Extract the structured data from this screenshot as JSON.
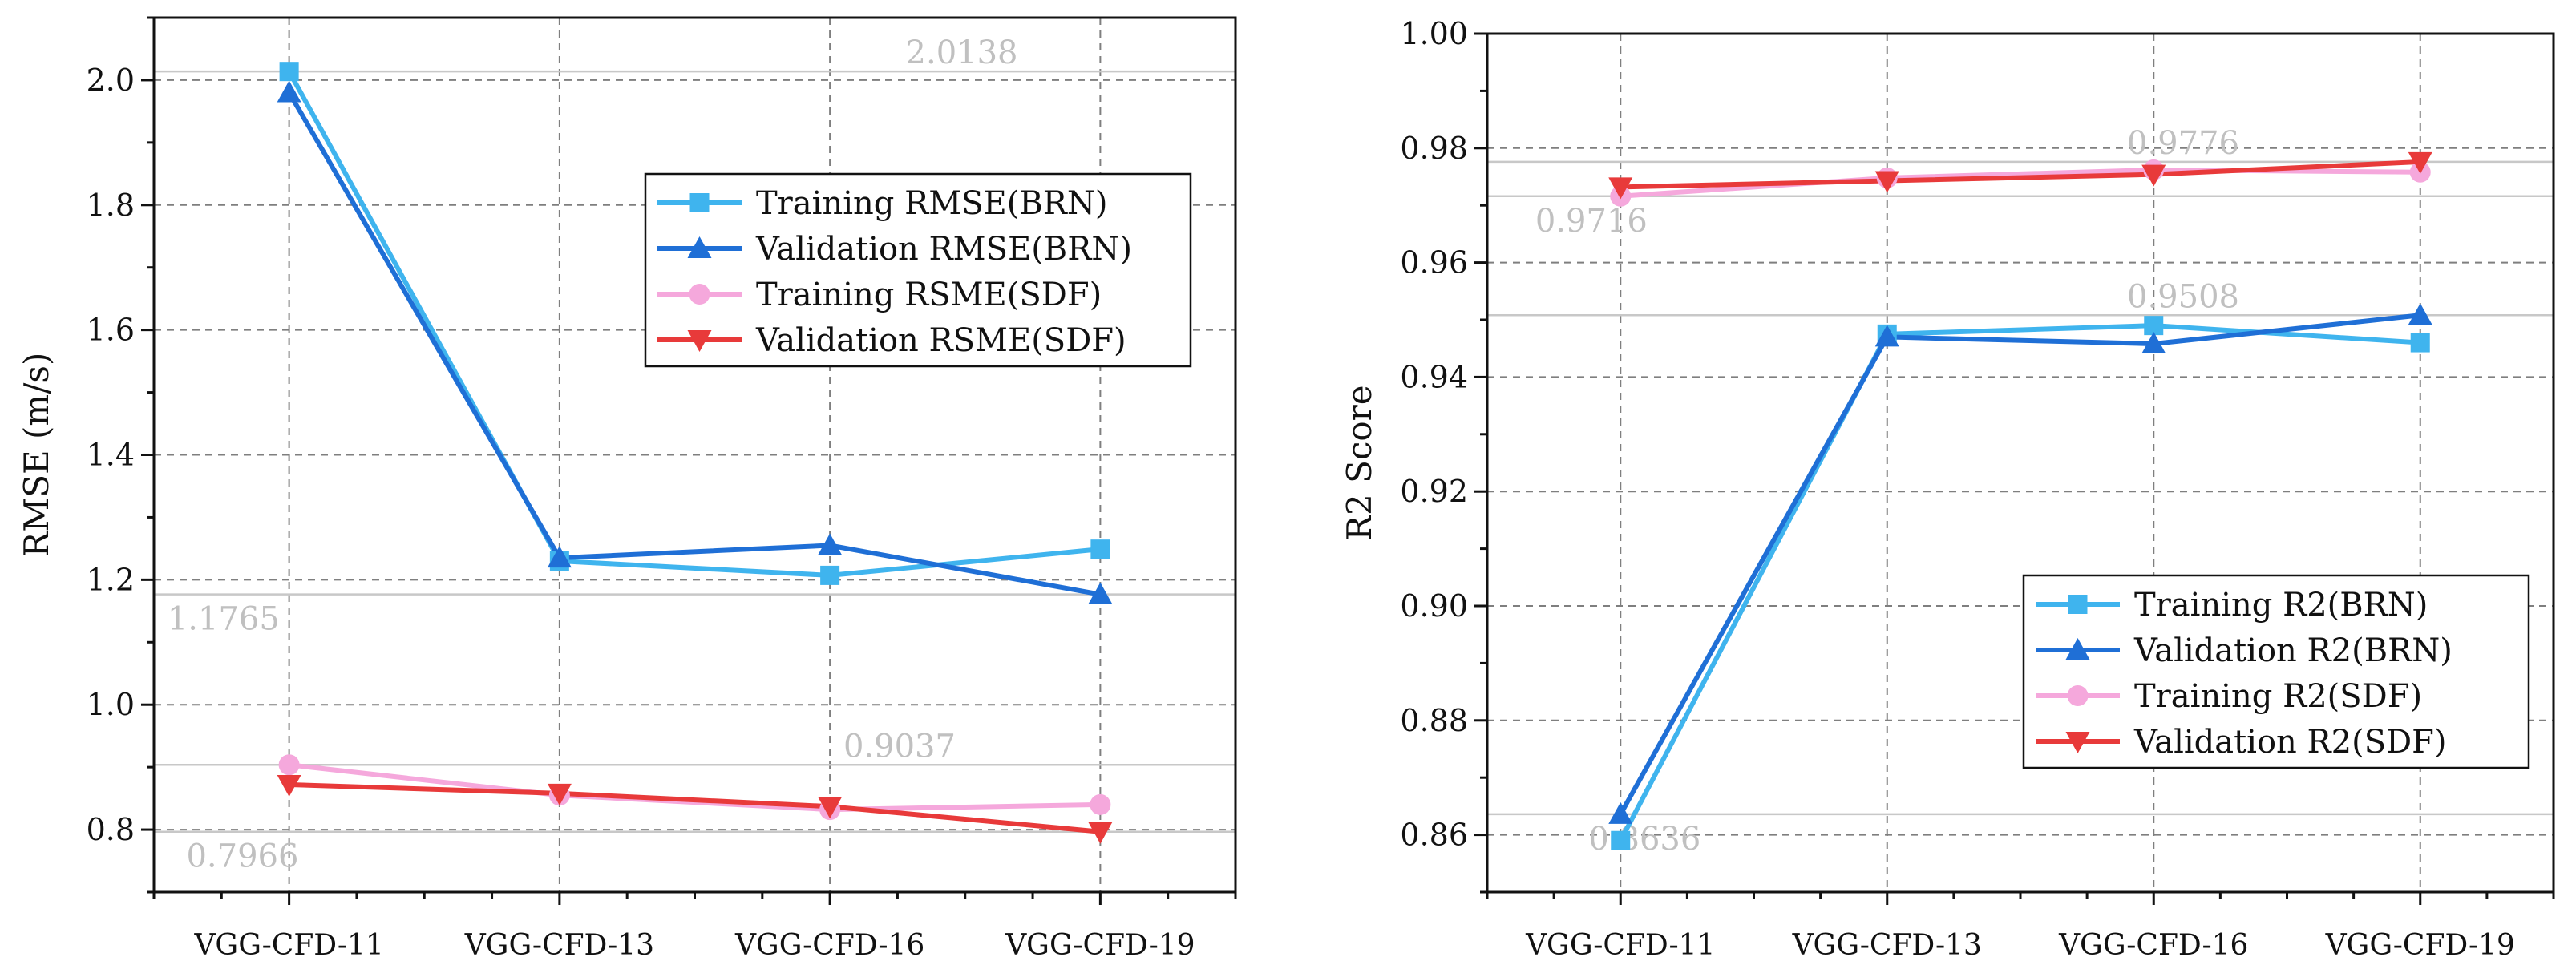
{
  "colors": {
    "training_brn": "#3fb4ee",
    "validation_brn": "#1f6fd6",
    "training_sdf": "#f5a8dc",
    "validation_sdf": "#e83a3a",
    "grid": "#7f7f7f",
    "refline": "#c8c8c8",
    "annotation": "#c0c0c0"
  },
  "chart_data": [
    {
      "type": "line",
      "title": "",
      "xlabel": "",
      "ylabel": "RMSE (m/s)",
      "categories": [
        "VGG-CFD-11",
        "VGG-CFD-13",
        "VGG-CFD-16",
        "VGG-CFD-19"
      ],
      "ylim": [
        0.7,
        2.1
      ],
      "yticks": [
        "0.8",
        "1.0",
        "1.2",
        "1.4",
        "1.6",
        "1.8",
        "2.0"
      ],
      "grid": true,
      "legend_position": "upper-right",
      "series": [
        {
          "name": "Training RMSE(BRN)",
          "values": [
            2.0138,
            1.23,
            1.207,
            1.249
          ],
          "marker": "square",
          "color_key": "training_brn"
        },
        {
          "name": "Validation RMSE(BRN)",
          "values": [
            1.98,
            1.235,
            1.255,
            1.1765
          ],
          "marker": "triangle-up",
          "color_key": "validation_brn"
        },
        {
          "name": "Training RSME(SDF)",
          "values": [
            0.9037,
            0.855,
            0.832,
            0.84
          ],
          "marker": "circle",
          "color_key": "training_sdf"
        },
        {
          "name": "Validation RSME(SDF)",
          "values": [
            0.872,
            0.858,
            0.837,
            0.7966
          ],
          "marker": "triangle-down",
          "color_key": "validation_sdf"
        }
      ],
      "reference_lines": [
        {
          "value": 2.0138,
          "label": "2.0138",
          "label_x": 2.78
        },
        {
          "value": 1.1765,
          "label": "1.1765",
          "label_x": 0.05
        },
        {
          "value": 0.9037,
          "label": "0.9037",
          "label_x": 2.55
        },
        {
          "value": 0.7966,
          "label": "0.7966",
          "label_x": 0.12
        }
      ]
    },
    {
      "type": "line",
      "title": "",
      "xlabel": "",
      "ylabel": "R2 Score",
      "categories": [
        "VGG-CFD-11",
        "VGG-CFD-13",
        "VGG-CFD-16",
        "VGG-CFD-19"
      ],
      "ylim": [
        0.85,
        1.0
      ],
      "yticks": [
        "0.86",
        "0.88",
        "0.90",
        "0.92",
        "0.94",
        "0.96",
        "0.98",
        "1.00"
      ],
      "grid": true,
      "legend_position": "lower-right",
      "series": [
        {
          "name": "Training R2(BRN)",
          "values": [
            0.859,
            0.9475,
            0.949,
            0.946
          ],
          "marker": "square",
          "color_key": "training_brn"
        },
        {
          "name": "Validation R2(BRN)",
          "values": [
            0.8636,
            0.947,
            0.9458,
            0.9508
          ],
          "marker": "triangle-up",
          "color_key": "validation_brn"
        },
        {
          "name": "Training R2(SDF)",
          "values": [
            0.9716,
            0.9748,
            0.9762,
            0.9758
          ],
          "marker": "circle",
          "color_key": "training_sdf"
        },
        {
          "name": "Validation R2(SDF)",
          "values": [
            0.9732,
            0.9743,
            0.9754,
            0.9776
          ],
          "marker": "triangle-down",
          "color_key": "validation_sdf"
        }
      ],
      "reference_lines": [
        {
          "value": 0.9776,
          "label": "0.9776",
          "label_x": 2.4
        },
        {
          "value": 0.9716,
          "label": "0.9716",
          "label_x": 0.18
        },
        {
          "value": 0.9508,
          "label": "0.9508",
          "label_x": 2.4
        },
        {
          "value": 0.8636,
          "label": "0.8636",
          "label_x": 0.38
        }
      ]
    }
  ]
}
